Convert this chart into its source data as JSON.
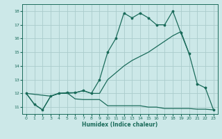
{
  "xlabel": "Humidex (Indice chaleur)",
  "bg_color": "#cce8e8",
  "grid_color": "#aacccc",
  "line_color": "#1a6b5a",
  "xlim": [
    -0.5,
    23.5
  ],
  "ylim": [
    10.5,
    18.5
  ],
  "xticks": [
    0,
    1,
    2,
    3,
    4,
    5,
    6,
    7,
    8,
    9,
    10,
    11,
    12,
    13,
    14,
    15,
    16,
    17,
    18,
    19,
    20,
    21,
    22,
    23
  ],
  "yticks": [
    11,
    12,
    13,
    14,
    15,
    16,
    17,
    18
  ],
  "line1_x": [
    0,
    1,
    2,
    3,
    4,
    5,
    6,
    7,
    8,
    9,
    10,
    11,
    12,
    13,
    14,
    15,
    16,
    17,
    18,
    19,
    20,
    21,
    22,
    23
  ],
  "line1_y": [
    12.0,
    11.2,
    10.8,
    11.8,
    12.0,
    12.05,
    12.05,
    12.2,
    12.0,
    13.0,
    15.0,
    16.0,
    17.85,
    17.5,
    17.85,
    17.5,
    17.0,
    17.0,
    18.0,
    16.4,
    14.9,
    12.7,
    12.4,
    10.8
  ],
  "line2_x": [
    0,
    3,
    4,
    5,
    6,
    7,
    8,
    9,
    10,
    11,
    12,
    13,
    14,
    15,
    16,
    17,
    18,
    19,
    20
  ],
  "line2_y": [
    12.0,
    11.8,
    12.0,
    12.0,
    12.05,
    12.2,
    12.0,
    12.0,
    13.0,
    13.5,
    14.0,
    14.4,
    14.7,
    15.0,
    15.4,
    15.8,
    16.2,
    16.5,
    14.9
  ],
  "line3_x": [
    0,
    1,
    2,
    3,
    4,
    5,
    6,
    7,
    8,
    9,
    10,
    11,
    12,
    13,
    14,
    15,
    16,
    17,
    18,
    19,
    20,
    21,
    22,
    23
  ],
  "line3_y": [
    12.0,
    11.2,
    10.8,
    11.8,
    12.0,
    12.05,
    11.6,
    11.55,
    11.55,
    11.55,
    11.1,
    11.1,
    11.1,
    11.1,
    11.1,
    11.0,
    11.0,
    10.9,
    10.9,
    10.9,
    10.9,
    10.85,
    10.85,
    10.8
  ]
}
